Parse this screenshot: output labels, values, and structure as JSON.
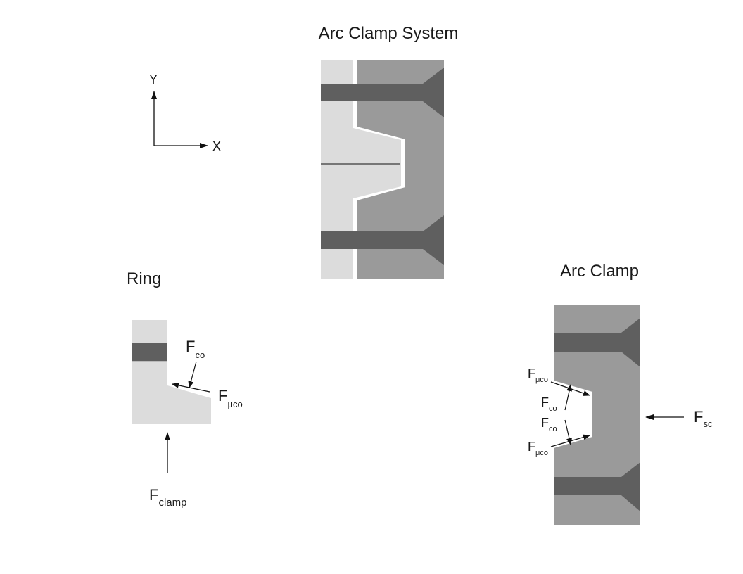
{
  "titles": {
    "system": "Arc Clamp System",
    "ring": "Ring",
    "arc_clamp": "Arc Clamp"
  },
  "axes": {
    "y": "Y",
    "x": "X"
  },
  "forces": {
    "F": "F",
    "co": "co",
    "muco": "μco",
    "clamp": "clamp",
    "sc": "sc"
  },
  "colors": {
    "ring": "#dcdcdc",
    "clamp": "#9a9a9a",
    "bolt": "#5f5f5f",
    "ink": "#111111"
  }
}
